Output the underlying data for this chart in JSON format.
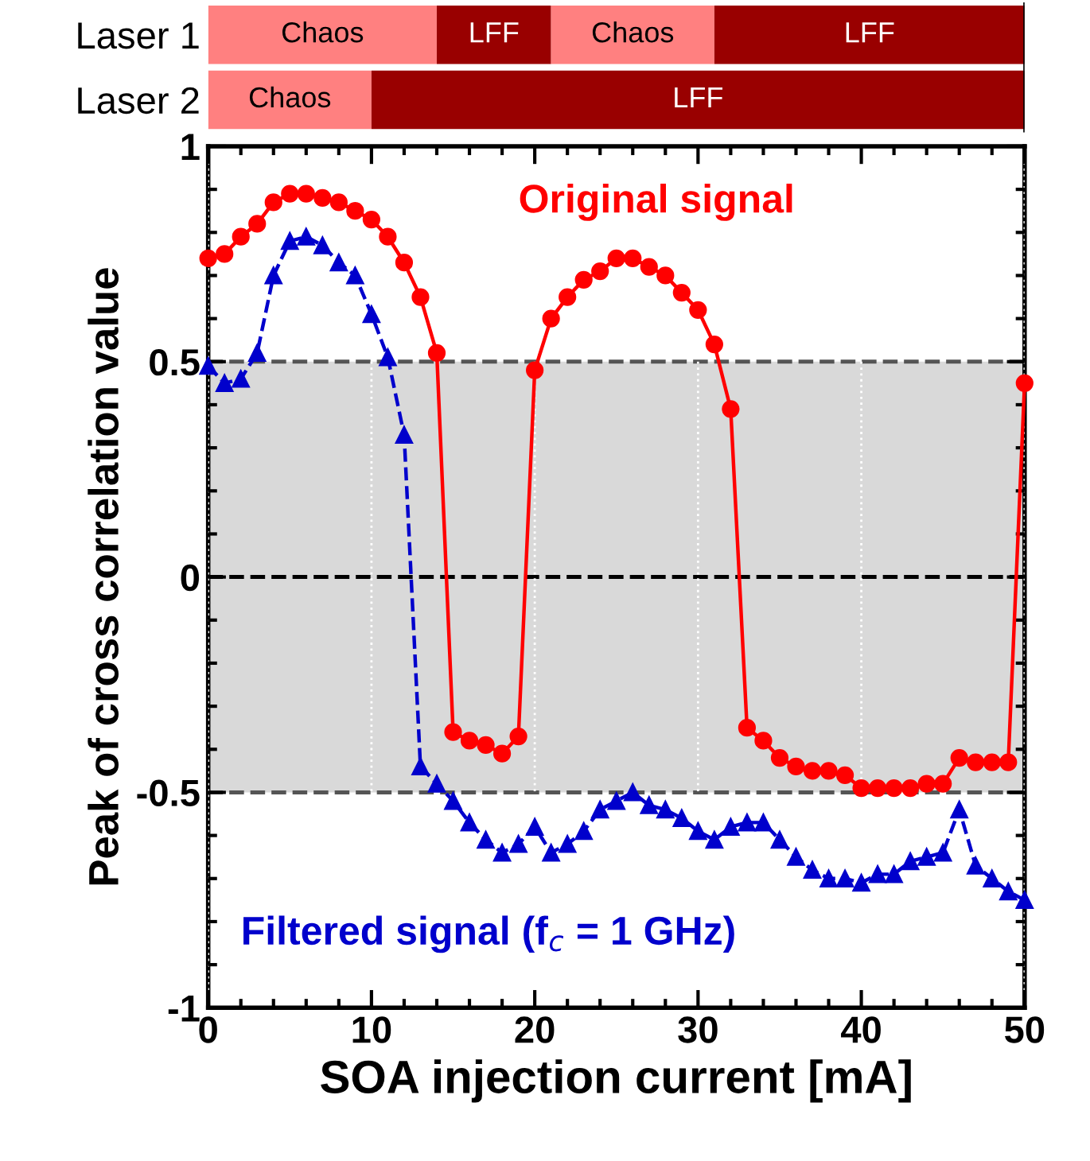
{
  "chart_data": [
    {
      "type": "bar",
      "orientation": "horizontal",
      "stacked": true,
      "categories": [
        "Laser 1",
        "Laser 2"
      ],
      "xlim": [
        0,
        50
      ],
      "tick_labels": "y",
      "legend": false,
      "series": [
        {
          "color": "#ff8080",
          "values": [
            14,
            10
          ],
          "value_labels": [
            "Chaos",
            "Chaos"
          ]
        },
        {
          "color": "#990000",
          "values": [
            7,
            40
          ],
          "value_labels": [
            "LFF",
            "LFF"
          ]
        },
        {
          "color": "#ff8080",
          "values": [
            10,
            null
          ],
          "value_labels": [
            "Chaos",
            null
          ]
        },
        {
          "color": "#990000",
          "values": [
            19,
            null
          ],
          "value_labels": [
            "LFF",
            null
          ]
        }
      ]
    },
    {
      "type": "line",
      "xlabel": "SOA injection current [mA]",
      "ylabel": "Peak of cross correlation value",
      "xlim": [
        0,
        50
      ],
      "xticks": [
        0,
        10,
        20,
        30,
        40,
        50
      ],
      "ylim": [
        -1,
        1
      ],
      "yticks": [
        {
          "value": -1,
          "label": "-1"
        },
        {
          "value": -0.5,
          "label": "-0.5"
        },
        0,
        0.5,
        1
      ],
      "grid": "x",
      "legend": false,
      "bands": [
        {
          "axis": "y",
          "from": -0.5,
          "to": 0.5,
          "color": "#d9d9d9"
        }
      ],
      "ref_lines": [
        {
          "axis": "y",
          "value": 0.5,
          "line_style": "dashed",
          "color": "#555555"
        },
        {
          "axis": "y",
          "value": 0,
          "line_style": "dashed",
          "color": "#000000"
        },
        {
          "axis": "y",
          "value": -0.5,
          "line_style": "dashed",
          "color": "#555555"
        }
      ],
      "x": [
        0,
        1,
        2,
        3,
        4,
        5,
        6,
        7,
        8,
        9,
        10,
        11,
        12,
        13,
        14,
        15,
        16,
        17,
        18,
        19,
        20,
        21,
        22,
        23,
        24,
        25,
        26,
        27,
        28,
        29,
        30,
        31,
        32,
        33,
        34,
        35,
        36,
        37,
        38,
        39,
        40,
        41,
        42,
        43,
        44,
        45,
        46,
        47,
        48,
        49,
        50
      ],
      "series": [
        {
          "name": "Original signal",
          "color": "#ff0000",
          "marker": "circle",
          "line_style": "solid",
          "values": [
            0.74,
            0.75,
            0.79,
            0.82,
            0.87,
            0.89,
            0.89,
            0.88,
            0.87,
            0.85,
            0.83,
            0.79,
            0.73,
            0.65,
            0.52,
            -0.36,
            -0.38,
            -0.39,
            -0.41,
            -0.37,
            0.48,
            0.6,
            0.65,
            0.69,
            0.71,
            0.74,
            0.74,
            0.72,
            0.7,
            0.66,
            0.62,
            0.54,
            0.39,
            -0.35,
            -0.38,
            -0.42,
            -0.44,
            -0.45,
            -0.45,
            -0.46,
            -0.49,
            -0.49,
            -0.49,
            -0.49,
            -0.48,
            -0.48,
            -0.42,
            -0.43,
            -0.43,
            -0.43,
            0.45
          ]
        },
        {
          "name": "Filtered signal (f$_{c}$ = 1 GHz)",
          "color": "#0000cc",
          "marker": "triangle",
          "line_style": "dashed",
          "values": [
            0.49,
            0.45,
            0.46,
            0.52,
            0.7,
            0.78,
            0.79,
            0.77,
            0.73,
            0.7,
            0.61,
            0.51,
            0.33,
            -0.44,
            -0.48,
            -0.52,
            -0.57,
            -0.61,
            -0.64,
            -0.62,
            -0.58,
            -0.64,
            -0.62,
            -0.59,
            -0.54,
            -0.52,
            -0.5,
            -0.53,
            -0.54,
            -0.56,
            -0.59,
            -0.61,
            -0.58,
            -0.57,
            -0.57,
            -0.61,
            -0.65,
            -0.68,
            -0.7,
            -0.7,
            -0.71,
            -0.69,
            -0.69,
            -0.66,
            -0.65,
            -0.64,
            -0.54,
            -0.67,
            -0.7,
            -0.73,
            -0.75
          ]
        }
      ]
    }
  ]
}
